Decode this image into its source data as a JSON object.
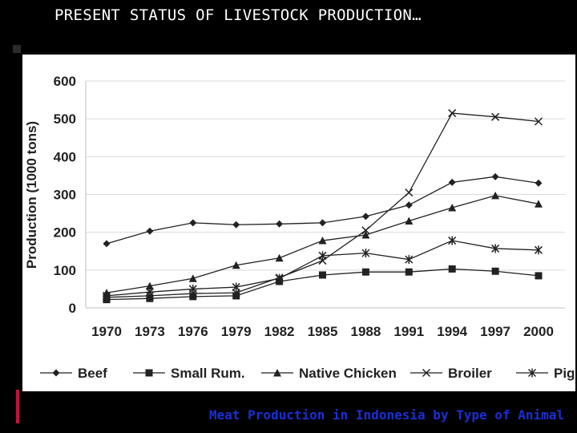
{
  "slide": {
    "title": "PRESENT STATUS OF LIVESTOCK PRODUCTION…",
    "caption": "Meat Production in Indonesia by Type of Animal"
  },
  "colors": {
    "background": "#000000",
    "panel": "#ffffff",
    "caption": "#1a2fd6",
    "accent_bar": "#c0143c",
    "series": "#222222"
  },
  "chart_data": {
    "type": "line",
    "ylabel": "Production (1000 tons)",
    "xlabel": "",
    "x": [
      "1970",
      "1973",
      "1976",
      "1979",
      "1982",
      "1985",
      "1988",
      "1991",
      "1994",
      "1997",
      "2000"
    ],
    "ylim": [
      0,
      600
    ],
    "yticks": [
      0,
      100,
      200,
      300,
      400,
      500,
      600
    ],
    "grid": "horizontal",
    "legend": "bottom",
    "series": [
      {
        "name": "Beef",
        "marker": "diamond",
        "values": [
          170,
          203,
          225,
          220,
          222,
          225,
          242,
          272,
          332,
          347,
          330
        ]
      },
      {
        "name": "Small Rum.",
        "marker": "square",
        "values": [
          22,
          25,
          30,
          32,
          70,
          87,
          95,
          95,
          103,
          97,
          85
        ]
      },
      {
        "name": "Native Chicken",
        "marker": "triangle",
        "values": [
          40,
          58,
          78,
          113,
          132,
          178,
          193,
          230,
          265,
          297,
          275
        ]
      },
      {
        "name": "Broiler",
        "marker": "x",
        "values": [
          28,
          32,
          38,
          40,
          80,
          125,
          205,
          305,
          515,
          505,
          493
        ]
      },
      {
        "name": "Pig",
        "marker": "asterisk",
        "values": [
          32,
          42,
          50,
          55,
          78,
          138,
          145,
          128,
          178,
          157,
          153
        ]
      }
    ]
  }
}
